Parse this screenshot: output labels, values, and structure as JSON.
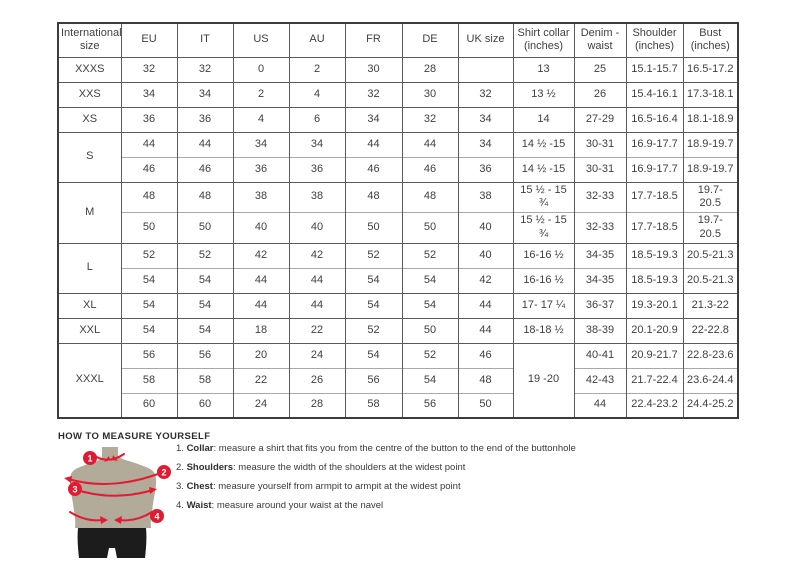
{
  "table": {
    "headers": [
      "International size",
      "EU",
      "IT",
      "US",
      "AU",
      "FR",
      "DE",
      "UK size",
      "Shirt collar (inches)",
      "Denim - waist",
      "Shoulder (inches)",
      "Bust (inches)"
    ],
    "rows": [
      {
        "cont": false,
        "cells": [
          {
            "t": "XXXS",
            "size": true
          },
          {
            "t": "32"
          },
          {
            "t": "32"
          },
          {
            "t": "0"
          },
          {
            "t": "2"
          },
          {
            "t": "30"
          },
          {
            "t": "28"
          },
          {
            "t": ""
          },
          {
            "t": "13"
          },
          {
            "t": "25"
          },
          {
            "t": "15.1-15.7"
          },
          {
            "t": "16.5-17.2"
          }
        ]
      },
      {
        "cont": false,
        "cells": [
          {
            "t": "XXS",
            "size": true
          },
          {
            "t": "34"
          },
          {
            "t": "34"
          },
          {
            "t": "2"
          },
          {
            "t": "4"
          },
          {
            "t": "32"
          },
          {
            "t": "30"
          },
          {
            "t": "32"
          },
          {
            "t": "13 ½"
          },
          {
            "t": "26"
          },
          {
            "t": "15.4-16.1"
          },
          {
            "t": "17.3-18.1"
          }
        ]
      },
      {
        "cont": false,
        "cells": [
          {
            "t": "XS",
            "size": true
          },
          {
            "t": "36"
          },
          {
            "t": "36"
          },
          {
            "t": "4"
          },
          {
            "t": "6"
          },
          {
            "t": "34"
          },
          {
            "t": "32"
          },
          {
            "t": "34"
          },
          {
            "t": "14"
          },
          {
            "t": "27-29"
          },
          {
            "t": "16.5-16.4"
          },
          {
            "t": "18.1-18.9"
          }
        ]
      },
      {
        "cont": false,
        "cells": [
          {
            "t": "S",
            "size": true,
            "rs": 2
          },
          {
            "t": "44"
          },
          {
            "t": "44"
          },
          {
            "t": "34"
          },
          {
            "t": "34"
          },
          {
            "t": "44"
          },
          {
            "t": "44"
          },
          {
            "t": "34"
          },
          {
            "t": "14 ½ -15"
          },
          {
            "t": "30-31"
          },
          {
            "t": "16.9-17.7"
          },
          {
            "t": "18.9-19.7"
          }
        ]
      },
      {
        "cont": true,
        "cells": [
          {
            "t": "46"
          },
          {
            "t": "46"
          },
          {
            "t": "36"
          },
          {
            "t": "36"
          },
          {
            "t": "46"
          },
          {
            "t": "46"
          },
          {
            "t": "36"
          },
          {
            "t": "14 ½ -15"
          },
          {
            "t": "30-31"
          },
          {
            "t": "16.9-17.7"
          },
          {
            "t": "18.9-19.7"
          }
        ]
      },
      {
        "cont": false,
        "cells": [
          {
            "t": "M",
            "size": true,
            "rs": 2
          },
          {
            "t": "48"
          },
          {
            "t": "48"
          },
          {
            "t": "38"
          },
          {
            "t": "38"
          },
          {
            "t": "48"
          },
          {
            "t": "48"
          },
          {
            "t": "38"
          },
          {
            "t": "15 ½ - 15 ¾"
          },
          {
            "t": "32-33"
          },
          {
            "t": "17.7-18.5"
          },
          {
            "t": "19.7- 20.5"
          }
        ]
      },
      {
        "cont": true,
        "cells": [
          {
            "t": "50"
          },
          {
            "t": "50"
          },
          {
            "t": "40"
          },
          {
            "t": "40"
          },
          {
            "t": "50"
          },
          {
            "t": "50"
          },
          {
            "t": "40"
          },
          {
            "t": "15 ½ - 15 ¾"
          },
          {
            "t": "32-33"
          },
          {
            "t": "17.7-18.5"
          },
          {
            "t": "19.7- 20.5"
          }
        ]
      },
      {
        "cont": false,
        "cells": [
          {
            "t": "L",
            "size": true,
            "rs": 2
          },
          {
            "t": "52"
          },
          {
            "t": "52"
          },
          {
            "t": "42"
          },
          {
            "t": "42"
          },
          {
            "t": "52"
          },
          {
            "t": "52"
          },
          {
            "t": "40"
          },
          {
            "t": "16-16 ½"
          },
          {
            "t": "34-35"
          },
          {
            "t": "18.5-19.3"
          },
          {
            "t": "20.5-21.3"
          }
        ]
      },
      {
        "cont": true,
        "cells": [
          {
            "t": "54"
          },
          {
            "t": "54"
          },
          {
            "t": "44"
          },
          {
            "t": "44"
          },
          {
            "t": "54"
          },
          {
            "t": "54"
          },
          {
            "t": "42"
          },
          {
            "t": "16-16 ½"
          },
          {
            "t": "34-35"
          },
          {
            "t": "18.5-19.3"
          },
          {
            "t": "20.5-21.3"
          }
        ]
      },
      {
        "cont": false,
        "cells": [
          {
            "t": "XL",
            "size": true
          },
          {
            "t": "54"
          },
          {
            "t": "54"
          },
          {
            "t": "44"
          },
          {
            "t": "44"
          },
          {
            "t": "54"
          },
          {
            "t": "54"
          },
          {
            "t": "44"
          },
          {
            "t": "17- 17 ¼"
          },
          {
            "t": "36-37"
          },
          {
            "t": "19.3-20.1"
          },
          {
            "t": "21.3-22"
          }
        ]
      },
      {
        "cont": false,
        "cells": [
          {
            "t": "XXL",
            "size": true
          },
          {
            "t": "54"
          },
          {
            "t": "54"
          },
          {
            "t": "18"
          },
          {
            "t": "22"
          },
          {
            "t": "52"
          },
          {
            "t": "50"
          },
          {
            "t": "44"
          },
          {
            "t": "18-18 ½"
          },
          {
            "t": "38-39"
          },
          {
            "t": "20.1-20.9"
          },
          {
            "t": "22-22.8"
          }
        ]
      },
      {
        "cont": false,
        "cells": [
          {
            "t": "XXXL",
            "size": true,
            "rs": 3
          },
          {
            "t": "56"
          },
          {
            "t": "56"
          },
          {
            "t": "20"
          },
          {
            "t": "24"
          },
          {
            "t": "54"
          },
          {
            "t": "52"
          },
          {
            "t": "46"
          },
          {
            "t": "19 -20",
            "rs": 3
          },
          {
            "t": "40-41"
          },
          {
            "t": "20.9-21.7"
          },
          {
            "t": "22.8-23.6"
          }
        ]
      },
      {
        "cont": true,
        "cells": [
          {
            "t": "58"
          },
          {
            "t": "58"
          },
          {
            "t": "22"
          },
          {
            "t": "26"
          },
          {
            "t": "56"
          },
          {
            "t": "54"
          },
          {
            "t": "48"
          },
          {
            "t": "42-43"
          },
          {
            "t": "21.7-22.4"
          },
          {
            "t": "23.6-24.4"
          }
        ]
      },
      {
        "cont": true,
        "cells": [
          {
            "t": "60"
          },
          {
            "t": "60"
          },
          {
            "t": "24"
          },
          {
            "t": "28"
          },
          {
            "t": "58"
          },
          {
            "t": "56"
          },
          {
            "t": "50"
          },
          {
            "t": "44"
          },
          {
            "t": "22.4-23.2"
          },
          {
            "t": "24.4-25.2"
          }
        ]
      }
    ]
  },
  "how_to": {
    "title": "HOW TO MEASURE YOURSELF",
    "items": [
      {
        "num": "1.",
        "label": "Collar",
        "rest": ": measure a shirt that fits you from the centre of the button to the end of the buttonhole"
      },
      {
        "num": "2.",
        "label": "Shoulders",
        "rest": ": measure the width of the shoulders at the widest point"
      },
      {
        "num": "3.",
        "label": "Chest",
        "rest": ": measure yourself from armpit to armpit at the widest point"
      },
      {
        "num": "4.",
        "label": "Waist",
        "rest": ": measure around your waist at the navel"
      }
    ]
  },
  "figure": {
    "badges": [
      "1",
      "2",
      "3",
      "4"
    ]
  },
  "colors": {
    "accent_red": "#e31b32",
    "torso": "#b3ab9a",
    "shorts": "#1c1c1c",
    "border_dark": "#5a5a5a",
    "border_light": "#a8a8a8",
    "text": "#3f3f3f"
  }
}
